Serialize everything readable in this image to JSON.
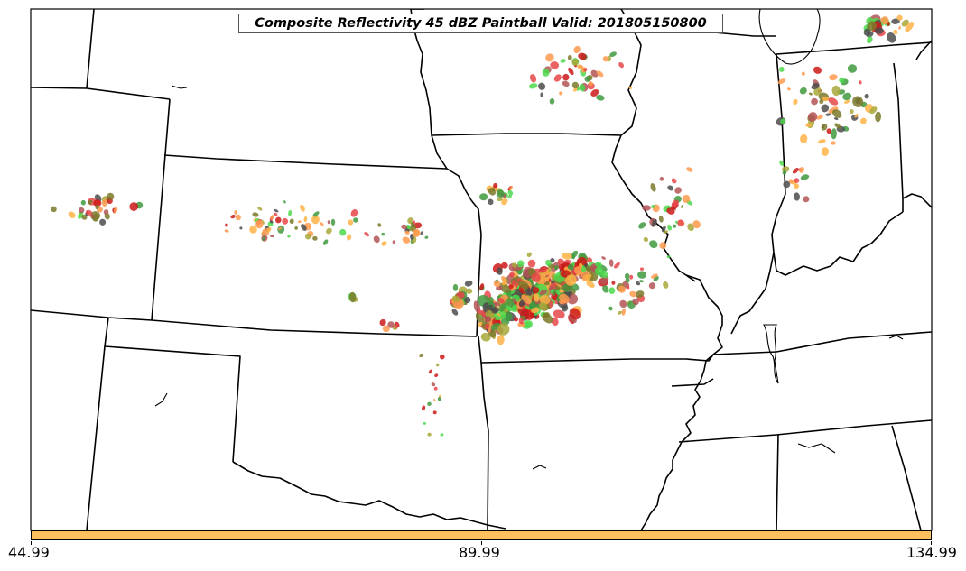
{
  "title": "Composite Reflectivity 45 dBZ Paintball Valid: 201805150800",
  "colors": {
    "boundary": "#000000",
    "frame": "#000000",
    "colorbar_fill": "#ffc060",
    "paintball_members": [
      "#3f9a3f",
      "#4c4c4c",
      "#e8474a",
      "#ff9a4d",
      "#a8a83a",
      "#b35555",
      "#4cd94c",
      "#cc1a1a",
      "#ffb347",
      "#7a7a2a"
    ]
  },
  "colorbar": {
    "ticks": [
      "44.99",
      "89.99",
      "134.99"
    ]
  },
  "map": {
    "projection": "lambert-conformal",
    "features": [
      "state-borders",
      "coastlines",
      "lakes"
    ]
  }
}
